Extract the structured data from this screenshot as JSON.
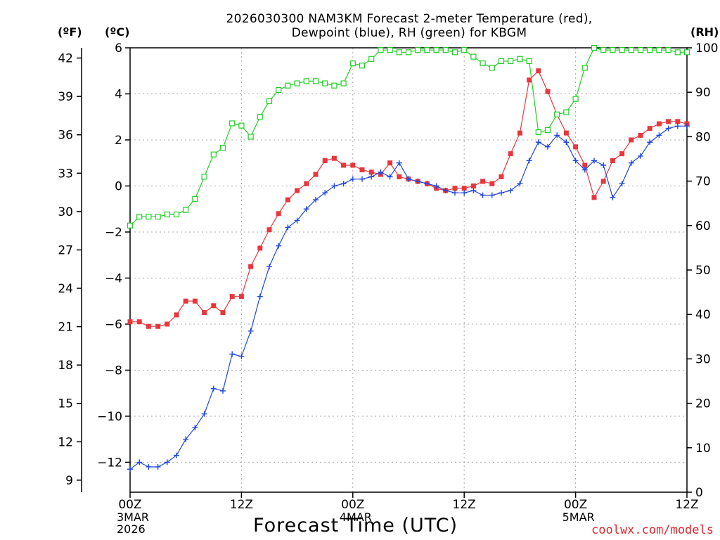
{
  "chart_data": {
    "type": "line",
    "title_line1": "2026030300 NAM3KM Forecast 2-meter Temperature (red),",
    "title_line2": "Dewpoint (blue), RH (green) for KBGM",
    "left_outer_unit": "(ºF)",
    "left_inner_unit": "(ºC)",
    "right_unit": "(RH)",
    "xlabel": "Forecast Time (UTC)",
    "credit": "coolwx.com/models",
    "x_ticks": [
      {
        "hour": 0,
        "label": "00Z",
        "sub": [
          "3MAR",
          "2026"
        ]
      },
      {
        "hour": 12,
        "label": "12Z",
        "sub": []
      },
      {
        "hour": 24,
        "label": "00Z",
        "sub": [
          "4MAR"
        ]
      },
      {
        "hour": 36,
        "label": "12Z",
        "sub": []
      },
      {
        "hour": 48,
        "label": "00Z",
        "sub": [
          "5MAR"
        ]
      },
      {
        "hour": 60,
        "label": "12Z",
        "sub": []
      }
    ],
    "xlim": [
      0,
      60
    ],
    "celsius_ticks": [
      "-12",
      "-10",
      "-8",
      "-6",
      "-4",
      "-2",
      "0",
      "2",
      "4",
      "6"
    ],
    "celsius_lim": [
      -13.3,
      6
    ],
    "fahrenheit_ticks": [
      "9",
      "12",
      "15",
      "18",
      "21",
      "24",
      "27",
      "30",
      "33",
      "36",
      "39",
      "42"
    ],
    "rh_ticks": [
      "0",
      "10",
      "20",
      "30",
      "40",
      "50",
      "60",
      "70",
      "80",
      "90",
      "100"
    ],
    "rh_lim": [
      0,
      100
    ],
    "hours": [
      0,
      1,
      2,
      3,
      4,
      5,
      6,
      7,
      8,
      9,
      10,
      11,
      12,
      13,
      14,
      15,
      16,
      17,
      18,
      19,
      20,
      21,
      22,
      23,
      24,
      25,
      26,
      27,
      28,
      29,
      30,
      31,
      32,
      33,
      34,
      35,
      36,
      37,
      38,
      39,
      40,
      41,
      42,
      43,
      44,
      45,
      46,
      47,
      48,
      49,
      50,
      51,
      52,
      53,
      54,
      55,
      56,
      57,
      58,
      59,
      60
    ],
    "series": [
      {
        "name": "Temperature",
        "color": "#e8363c",
        "marker": "filled-square",
        "unit": "C",
        "values": [
          -5.9,
          -5.9,
          -6.1,
          -6.1,
          -6.0,
          -5.6,
          -5.0,
          -5.0,
          -5.5,
          -5.2,
          -5.5,
          -4.8,
          -4.8,
          -3.5,
          -2.7,
          -1.9,
          -1.2,
          -0.6,
          -0.2,
          0.1,
          0.5,
          1.1,
          1.2,
          0.9,
          0.9,
          0.7,
          0.6,
          0.5,
          1.0,
          0.4,
          0.3,
          0.2,
          0.1,
          -0.1,
          -0.2,
          -0.1,
          -0.1,
          0.0,
          0.2,
          0.1,
          0.4,
          1.4,
          2.3,
          4.6,
          5.0,
          4.1,
          3.1,
          2.3,
          1.7,
          0.9,
          -0.5,
          0.2,
          1.1,
          1.4,
          2.0,
          2.2,
          2.5,
          2.7,
          2.8,
          2.8,
          2.7
        ]
      },
      {
        "name": "Dewpoint",
        "color": "#2048e0",
        "marker": "plus",
        "unit": "C",
        "values": [
          -12.3,
          -12.0,
          -12.2,
          -12.2,
          -12.0,
          -11.7,
          -11.0,
          -10.5,
          -9.9,
          -8.8,
          -8.9,
          -7.3,
          -7.4,
          -6.3,
          -4.8,
          -3.5,
          -2.6,
          -1.8,
          -1.5,
          -1.0,
          -0.6,
          -0.3,
          0.0,
          0.1,
          0.3,
          0.3,
          0.4,
          0.6,
          0.4,
          1.0,
          0.3,
          0.2,
          0.1,
          0.0,
          -0.2,
          -0.3,
          -0.3,
          -0.2,
          -0.4,
          -0.4,
          -0.3,
          -0.2,
          0.1,
          1.1,
          1.9,
          1.7,
          2.2,
          1.9,
          1.1,
          0.7,
          1.1,
          0.9,
          -0.5,
          0.1,
          1.0,
          1.3,
          1.9,
          2.2,
          2.5,
          2.6,
          2.6
        ]
      },
      {
        "name": "RH",
        "color": "#1fd023",
        "marker": "open-square",
        "unit": "%",
        "values": [
          60,
          62,
          62,
          62,
          62.5,
          62.5,
          63.5,
          66,
          71,
          76,
          77.5,
          83,
          82.5,
          80,
          84.5,
          88,
          90.5,
          91.5,
          92,
          92.5,
          92.5,
          92,
          91.5,
          92,
          96.5,
          96,
          97.5,
          99.5,
          99.5,
          99,
          99,
          99.5,
          99.5,
          99.5,
          99.5,
          99,
          99.5,
          98,
          96.5,
          95.5,
          97,
          97,
          97.5,
          97,
          81,
          81.5,
          85,
          85.5,
          88.5,
          95.5,
          100,
          99.5,
          99.5,
          99.5,
          99.5,
          99.5,
          99.5,
          99.5,
          99.5,
          99,
          99
        ]
      }
    ]
  }
}
